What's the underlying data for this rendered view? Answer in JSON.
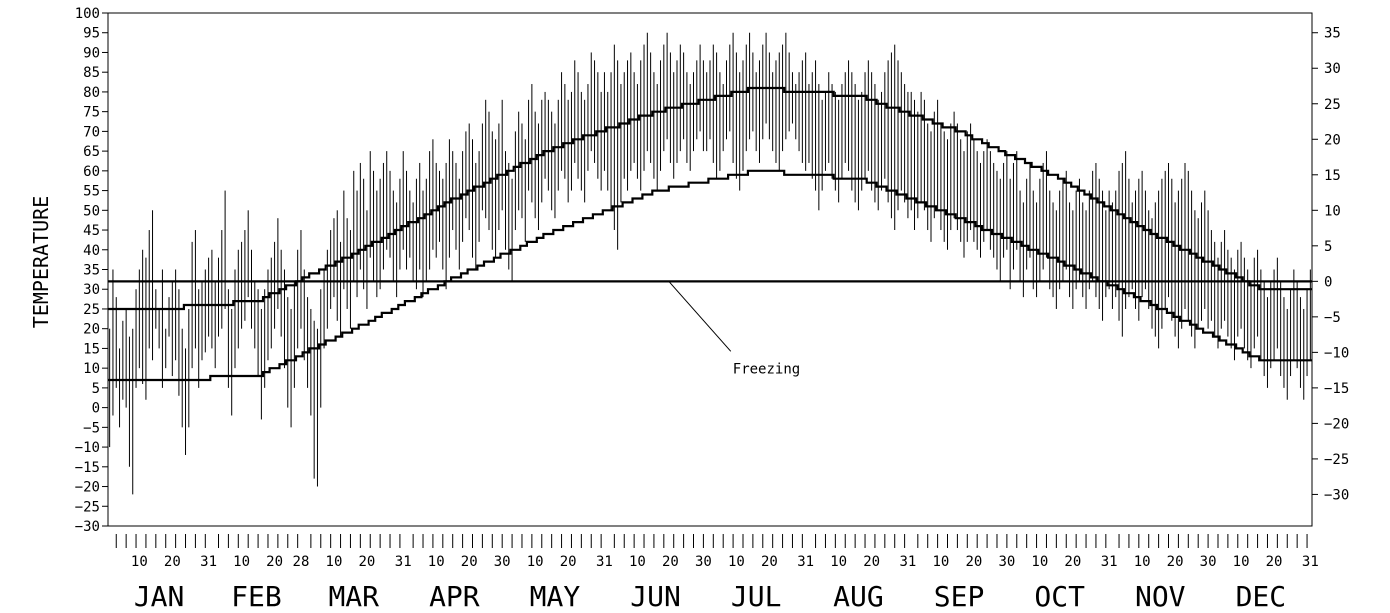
{
  "chart_data": {
    "type": "line",
    "title": "",
    "ylabel": "TEMPERATURE",
    "ylim": [
      -30,
      100
    ],
    "y_ticks_left": [
      -30,
      -25,
      -20,
      -15,
      -10,
      -5,
      0,
      5,
      10,
      15,
      20,
      25,
      30,
      35,
      40,
      45,
      50,
      55,
      60,
      65,
      70,
      75,
      80,
      85,
      90,
      95,
      100
    ],
    "y_ticks_right": [
      -30,
      -25,
      -20,
      -15,
      -10,
      -5,
      0,
      5,
      10,
      15,
      20,
      25,
      30,
      35
    ],
    "months": [
      {
        "name": "JAN",
        "days": 31,
        "labels": [
          "10",
          "20",
          "31"
        ]
      },
      {
        "name": "FEB",
        "days": 28,
        "labels": [
          "10",
          "20",
          "28"
        ]
      },
      {
        "name": "MAR",
        "days": 31,
        "labels": [
          "10",
          "20",
          "31"
        ]
      },
      {
        "name": "APR",
        "days": 30,
        "labels": [
          "10",
          "20",
          "30"
        ]
      },
      {
        "name": "MAY",
        "days": 31,
        "labels": [
          "10",
          "20",
          "31"
        ]
      },
      {
        "name": "JUN",
        "days": 30,
        "labels": [
          "10",
          "20",
          "30"
        ]
      },
      {
        "name": "JUL",
        "days": 31,
        "labels": [
          "10",
          "20",
          "31"
        ]
      },
      {
        "name": "AUG",
        "days": 31,
        "labels": [
          "10",
          "20",
          "31"
        ]
      },
      {
        "name": "SEP",
        "days": 30,
        "labels": [
          "10",
          "20",
          "30"
        ]
      },
      {
        "name": "OCT",
        "days": 31,
        "labels": [
          "10",
          "20",
          "31"
        ]
      },
      {
        "name": "NOV",
        "days": 30,
        "labels": [
          "10",
          "20",
          "30"
        ]
      },
      {
        "name": "DEC",
        "days": 31,
        "labels": [
          "10",
          "20",
          "31"
        ]
      }
    ],
    "freezing_line": 32,
    "annotation": {
      "text": "Freezing",
      "day": 170,
      "value": 32
    },
    "normal_high_monthly": [
      25,
      27,
      39,
      53,
      66,
      75,
      81,
      79,
      70,
      58,
      43,
      30
    ],
    "normal_low_monthly": [
      7,
      8,
      20,
      33,
      45,
      55,
      60,
      58,
      48,
      37,
      25,
      12
    ],
    "daily_ranges": [
      {
        "month": "JAN",
        "lows": [
          -10,
          -2,
          5,
          -5,
          2,
          0,
          -15,
          -22,
          5,
          10,
          6,
          2,
          15,
          12,
          20,
          15,
          5,
          10,
          18,
          8,
          12,
          3,
          -5,
          -12,
          -5,
          10,
          15,
          5,
          12,
          14,
          18
        ],
        "highs": [
          20,
          35,
          28,
          15,
          22,
          25,
          18,
          20,
          30,
          35,
          40,
          38,
          45,
          50,
          30,
          25,
          35,
          20,
          28,
          32,
          35,
          30,
          20,
          15,
          25,
          42,
          45,
          30,
          32,
          35,
          38
        ]
      },
      {
        "month": "FEB",
        "lows": [
          15,
          10,
          18,
          20,
          25,
          5,
          -2,
          10,
          15,
          20,
          22,
          28,
          20,
          15,
          8,
          -3,
          5,
          12,
          15,
          20,
          25,
          18,
          10,
          0,
          -5,
          5,
          15,
          20
        ],
        "highs": [
          40,
          32,
          38,
          45,
          55,
          30,
          25,
          35,
          40,
          42,
          45,
          50,
          40,
          32,
          30,
          25,
          30,
          35,
          38,
          42,
          48,
          40,
          35,
          28,
          25,
          32,
          40,
          45
        ]
      },
      {
        "month": "MAR",
        "lows": [
          12,
          5,
          -2,
          -18,
          -20,
          0,
          15,
          20,
          25,
          28,
          22,
          18,
          30,
          25,
          20,
          32,
          28,
          35,
          30,
          25,
          38,
          32,
          28,
          30,
          35,
          40,
          38,
          32,
          28,
          35,
          40
        ],
        "highs": [
          35,
          28,
          25,
          22,
          20,
          30,
          35,
          40,
          45,
          48,
          50,
          42,
          55,
          48,
          45,
          60,
          55,
          62,
          58,
          50,
          65,
          60,
          55,
          58,
          62,
          65,
          60,
          55,
          52,
          58,
          65
        ]
      },
      {
        "month": "APR",
        "lows": [
          35,
          38,
          32,
          30,
          35,
          28,
          32,
          35,
          40,
          38,
          42,
          35,
          30,
          38,
          45,
          40,
          35,
          42,
          48,
          45,
          38,
          35,
          42,
          50,
          48,
          45,
          40,
          38,
          45,
          50
        ],
        "highs": [
          60,
          55,
          52,
          58,
          62,
          55,
          58,
          65,
          68,
          62,
          60,
          58,
          62,
          68,
          65,
          62,
          58,
          65,
          70,
          72,
          68,
          62,
          65,
          72,
          78,
          75,
          70,
          68,
          72,
          78
        ]
      },
      {
        "month": "MAY",
        "lows": [
          40,
          35,
          32,
          45,
          50,
          48,
          42,
          55,
          52,
          48,
          45,
          52,
          58,
          55,
          50,
          48,
          55,
          60,
          58,
          52,
          55,
          62,
          58,
          55,
          52,
          60,
          65,
          62,
          58,
          55,
          60
        ],
        "highs": [
          65,
          62,
          58,
          70,
          75,
          72,
          68,
          78,
          82,
          75,
          72,
          78,
          80,
          78,
          75,
          72,
          78,
          85,
          82,
          78,
          80,
          88,
          85,
          80,
          78,
          82,
          90,
          88,
          85,
          80,
          85
        ]
      },
      {
        "month": "JUN",
        "lows": [
          55,
          50,
          45,
          40,
          52,
          58,
          55,
          60,
          62,
          58,
          55,
          60,
          65,
          62,
          58,
          55,
          60,
          65,
          68,
          62,
          58,
          62,
          65,
          68,
          62,
          60,
          65,
          68,
          70,
          65
        ],
        "highs": [
          80,
          85,
          92,
          88,
          82,
          85,
          88,
          90,
          85,
          82,
          88,
          92,
          95,
          90,
          85,
          82,
          88,
          92,
          95,
          90,
          85,
          88,
          92,
          90,
          85,
          82,
          85,
          88,
          92,
          88
        ]
      },
      {
        "month": "JUL",
        "lows": [
          65,
          68,
          62,
          58,
          60,
          65,
          68,
          70,
          62,
          58,
          55,
          60,
          65,
          68,
          70,
          65,
          62,
          68,
          72,
          68,
          65,
          62,
          60,
          65,
          68,
          70,
          72,
          68,
          65,
          62,
          60
        ],
        "highs": [
          85,
          88,
          92,
          90,
          85,
          82,
          88,
          92,
          95,
          90,
          85,
          88,
          92,
          95,
          90,
          85,
          88,
          92,
          95,
          90,
          85,
          88,
          90,
          92,
          95,
          90,
          85,
          82,
          85,
          88,
          90
        ]
      },
      {
        "month": "AUG",
        "lows": [
          62,
          58,
          55,
          50,
          55,
          60,
          62,
          58,
          55,
          52,
          58,
          62,
          60,
          55,
          52,
          50,
          55,
          58,
          60,
          55,
          52,
          50,
          55,
          58,
          52,
          48,
          45,
          50,
          55,
          52,
          48
        ],
        "highs": [
          82,
          85,
          88,
          82,
          78,
          80,
          85,
          82,
          80,
          78,
          82,
          85,
          88,
          85,
          82,
          78,
          80,
          85,
          88,
          85,
          82,
          78,
          80,
          85,
          88,
          90,
          92,
          88,
          85,
          82,
          80
        ]
      },
      {
        "month": "SEP",
        "lows": [
          50,
          45,
          48,
          52,
          50,
          45,
          42,
          48,
          50,
          45,
          42,
          40,
          45,
          48,
          45,
          42,
          38,
          42,
          45,
          42,
          40,
          38,
          42,
          45,
          40,
          38,
          35,
          32,
          38,
          40
        ],
        "highs": [
          80,
          78,
          75,
          80,
          78,
          72,
          70,
          75,
          78,
          72,
          70,
          68,
          72,
          75,
          72,
          68,
          65,
          70,
          72,
          68,
          65,
          62,
          65,
          68,
          65,
          62,
          60,
          58,
          62,
          65
        ]
      },
      {
        "month": "OCT",
        "lows": [
          30,
          35,
          40,
          32,
          28,
          35,
          38,
          30,
          28,
          32,
          35,
          38,
          30,
          28,
          25,
          30,
          32,
          35,
          28,
          25,
          30,
          32,
          28,
          25,
          30,
          32,
          28,
          25,
          22,
          28,
          30
        ],
        "highs": [
          58,
          62,
          65,
          55,
          52,
          58,
          62,
          55,
          52,
          58,
          62,
          65,
          55,
          52,
          50,
          55,
          58,
          60,
          52,
          50,
          55,
          58,
          52,
          50,
          55,
          60,
          62,
          58,
          55,
          50,
          55
        ]
      },
      {
        "month": "NOV",
        "lows": [
          25,
          28,
          22,
          18,
          25,
          28,
          30,
          25,
          22,
          28,
          30,
          25,
          20,
          18,
          15,
          20,
          25,
          28,
          22,
          18,
          15,
          20,
          25,
          22,
          18,
          15,
          20,
          22,
          25,
          20
        ],
        "highs": [
          52,
          55,
          60,
          62,
          65,
          58,
          52,
          55,
          58,
          60,
          55,
          50,
          48,
          52,
          55,
          58,
          60,
          62,
          58,
          52,
          55,
          58,
          62,
          60,
          55,
          50,
          48,
          52,
          55,
          50
        ]
      },
      {
        "month": "DEC",
        "lows": [
          22,
          18,
          15,
          20,
          22,
          18,
          15,
          12,
          18,
          20,
          15,
          12,
          10,
          15,
          18,
          12,
          8,
          5,
          10,
          12,
          15,
          8,
          5,
          2,
          8,
          12,
          10,
          5,
          2,
          8,
          12
        ],
        "highs": [
          45,
          42,
          38,
          42,
          45,
          40,
          38,
          35,
          40,
          42,
          38,
          35,
          32,
          38,
          40,
          35,
          32,
          28,
          32,
          35,
          38,
          32,
          28,
          25,
          30,
          35,
          32,
          28,
          25,
          30,
          35
        ]
      }
    ]
  }
}
